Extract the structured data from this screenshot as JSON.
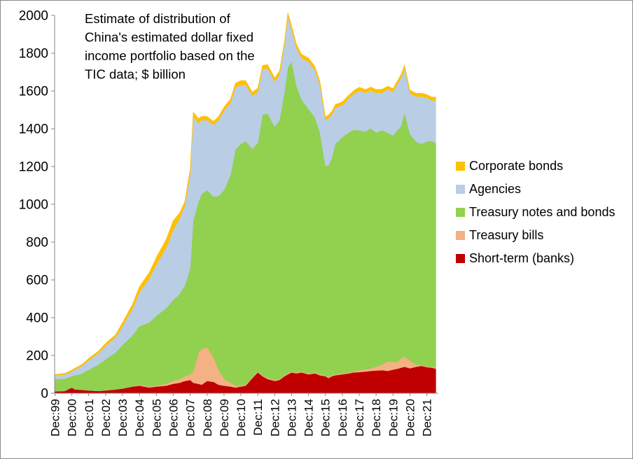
{
  "chart_data": {
    "type": "area",
    "stacked": true,
    "title_lines": [
      "Estimate of distribution of",
      "China's estimated dollar fixed",
      "income portfolio based on the",
      "TIC data; $ billion"
    ],
    "xlabel": "",
    "ylabel": "",
    "ylim": [
      0,
      2000
    ],
    "yticks": [
      0,
      200,
      400,
      600,
      800,
      1000,
      1200,
      1400,
      1600,
      1800,
      2000
    ],
    "xlim": [
      1999.9,
      2022.6
    ],
    "xtick_labels": [
      "Dec:99",
      "Dec:00",
      "Dec:01",
      "Dec:02",
      "Dec:03",
      "Dec:04",
      "Dec:05",
      "Dec:06",
      "Dec:07",
      "Dec:08",
      "Dec:09",
      "Dec:10",
      "Dec:11",
      "Dec:12",
      "Dec:13",
      "Dec:14",
      "Dec:15",
      "Dec:16",
      "Dec:17",
      "Dec:18",
      "Dec:19",
      "Dec:20",
      "Dec:21"
    ],
    "grid": false,
    "legend_position": "right",
    "x": [
      1999.92,
      2000.5,
      2000.92,
      2001.1,
      2001.5,
      2001.92,
      2002.5,
      2002.92,
      2003.5,
      2003.92,
      2004.5,
      2004.92,
      2005.5,
      2005.92,
      2006.5,
      2006.92,
      2007.3,
      2007.6,
      2007.92,
      2008.1,
      2008.4,
      2008.6,
      2008.92,
      2009.3,
      2009.6,
      2009.92,
      2010.3,
      2010.6,
      2010.92,
      2011.2,
      2011.6,
      2011.92,
      2012.2,
      2012.5,
      2012.92,
      2013.2,
      2013.5,
      2013.7,
      2013.92,
      2014.2,
      2014.5,
      2014.92,
      2015.3,
      2015.6,
      2015.92,
      2016.1,
      2016.3,
      2016.5,
      2016.92,
      2017.3,
      2017.6,
      2017.92,
      2018.3,
      2018.6,
      2018.92,
      2019.3,
      2019.6,
      2019.92,
      2020.2,
      2020.4,
      2020.6,
      2020.92,
      2021.3,
      2021.6,
      2021.92,
      2022.2,
      2022.45
    ],
    "series": [
      {
        "name": "Short-term (banks)",
        "color": "#c00000",
        "values": [
          10,
          12,
          30,
          20,
          18,
          15,
          12,
          15,
          20,
          25,
          35,
          40,
          30,
          35,
          40,
          50,
          55,
          65,
          70,
          55,
          50,
          45,
          65,
          60,
          45,
          40,
          35,
          30,
          35,
          40,
          80,
          110,
          90,
          75,
          65,
          70,
          90,
          100,
          110,
          105,
          110,
          100,
          105,
          95,
          90,
          80,
          90,
          95,
          100,
          105,
          110,
          112,
          115,
          118,
          120,
          122,
          118,
          125,
          130,
          135,
          140,
          132,
          140,
          145,
          138,
          135,
          130
        ]
      },
      {
        "name": "Treasury bills",
        "color": "#f4b183",
        "values": [
          0,
          0,
          0,
          0,
          0,
          0,
          0,
          0,
          0,
          0,
          0,
          5,
          5,
          5,
          10,
          15,
          20,
          25,
          30,
          60,
          160,
          190,
          180,
          130,
          80,
          35,
          20,
          10,
          5,
          5,
          5,
          5,
          5,
          5,
          5,
          5,
          5,
          5,
          5,
          5,
          5,
          5,
          5,
          5,
          5,
          5,
          5,
          5,
          5,
          5,
          5,
          10,
          10,
          15,
          20,
          30,
          50,
          40,
          35,
          50,
          55,
          40,
          10,
          5,
          5,
          5,
          5
        ]
      },
      {
        "name": "Treasury notes and bonds",
        "color": "#92d050",
        "values": [
          65,
          65,
          60,
          75,
          85,
          110,
          140,
          165,
          195,
          230,
          270,
          310,
          340,
          370,
          400,
          430,
          450,
          480,
          560,
          800,
          800,
          820,
          830,
          850,
          920,
          1000,
          1100,
          1250,
          1280,
          1290,
          1210,
          1210,
          1380,
          1400,
          1340,
          1370,
          1500,
          1620,
          1640,
          1520,
          1440,
          1400,
          1350,
          1280,
          1110,
          1120,
          1150,
          1220,
          1250,
          1270,
          1280,
          1270,
          1260,
          1270,
          1240,
          1240,
          1210,
          1200,
          1230,
          1230,
          1290,
          1200,
          1180,
          1170,
          1190,
          1195,
          1190
        ]
      },
      {
        "name": "Agencies",
        "color": "#b9cde5",
        "values": [
          20,
          22,
          25,
          30,
          40,
          50,
          60,
          70,
          80,
          100,
          140,
          180,
          230,
          270,
          320,
          370,
          400,
          420,
          500,
          550,
          420,
          390,
          370,
          380,
          400,
          420,
          380,
          330,
          310,
          300,
          280,
          270,
          240,
          240,
          240,
          240,
          250,
          270,
          170,
          200,
          220,
          250,
          250,
          250,
          240,
          250,
          230,
          190,
          170,
          180,
          190,
          210,
          205,
          200,
          210,
          200,
          230,
          230,
          245,
          255,
          235,
          215,
          240,
          250,
          230,
          215,
          225
        ]
      },
      {
        "name": "Corporate bonds",
        "color": "#ffc000",
        "values": [
          5,
          6,
          8,
          8,
          9,
          10,
          12,
          15,
          15,
          20,
          25,
          30,
          35,
          40,
          45,
          50,
          30,
          25,
          28,
          25,
          25,
          20,
          20,
          20,
          20,
          20,
          22,
          22,
          25,
          20,
          20,
          20,
          20,
          20,
          20,
          20,
          20,
          20,
          20,
          20,
          20,
          20,
          20,
          20,
          18,
          18,
          18,
          18,
          18,
          18,
          18,
          18,
          18,
          18,
          18,
          18,
          18,
          18,
          18,
          18,
          18,
          18,
          18,
          18,
          18,
          18,
          18
        ]
      }
    ]
  }
}
